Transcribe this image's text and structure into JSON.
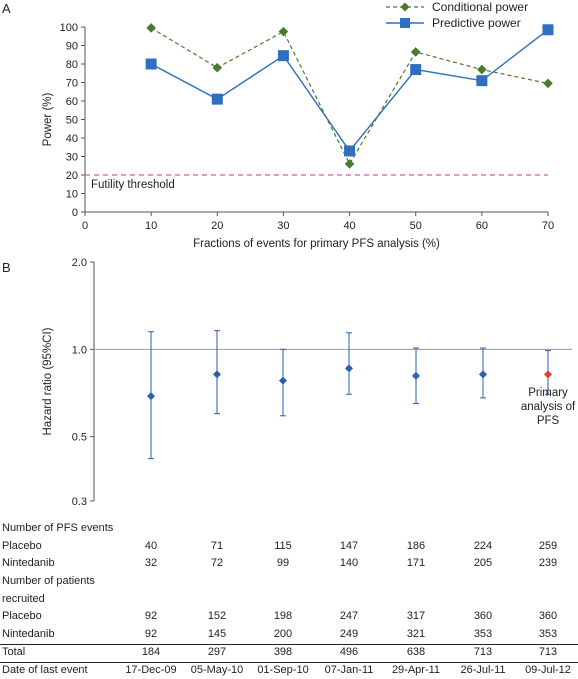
{
  "panels": {
    "a_label": "A",
    "b_label": "B"
  },
  "colors": {
    "conditional": "#4a7a2c",
    "predictive": "#2f6fc0",
    "threshold": "#e0559e",
    "reference": "#9a9a9a",
    "forest": "#2a5fae",
    "primary": "#e0402a"
  },
  "chart_data": [
    {
      "type": "line",
      "x": [
        10,
        20,
        30,
        40,
        50,
        60,
        70
      ],
      "series": [
        {
          "name": "Conditional power",
          "values": [
            99.5,
            78,
            97.5,
            26,
            86.5,
            77,
            69.5
          ]
        },
        {
          "name": "Predictive power",
          "values": [
            80,
            61,
            84.5,
            33,
            77,
            71,
            98.5
          ]
        }
      ],
      "xlabel": "Fractions of events for primary PFS analysis (%)",
      "ylabel": "Power (%)",
      "xlim": [
        0,
        70
      ],
      "ylim": [
        0,
        100
      ],
      "xticks": [
        "0",
        "10",
        "20",
        "30",
        "40",
        "50",
        "60",
        "70"
      ],
      "yticks": [
        "0",
        "10",
        "20",
        "30",
        "40",
        "50",
        "60",
        "70",
        "80",
        "90",
        "100"
      ],
      "threshold": {
        "value": 20,
        "label": "Futility threshold"
      },
      "legend": "top-right"
    },
    {
      "type": "scatter",
      "categories": [
        "17-Dec-09",
        "05-May-10",
        "01-Sep-10",
        "07-Jan-11",
        "29-Apr-11",
        "26-Jul-11",
        "09-Jul-12"
      ],
      "hr": [
        0.69,
        0.82,
        0.78,
        0.86,
        0.81,
        0.82,
        0.82
      ],
      "ci_lower": [
        0.42,
        0.6,
        0.59,
        0.7,
        0.65,
        0.68,
        0.7
      ],
      "ci_upper": [
        1.15,
        1.16,
        1.0,
        1.14,
        1.01,
        1.01,
        0.99
      ],
      "ylabel": "Hazard ratio (95%CI)",
      "yscale": "log",
      "ylim": [
        0.3,
        2.0
      ],
      "yticks": [
        "0.3",
        "0.5",
        "1.0",
        "2.0"
      ],
      "reference": 1.0,
      "primary_index": 6,
      "annotation": [
        "Primary",
        "analysis of",
        "PFS"
      ]
    }
  ],
  "table": {
    "rows": [
      {
        "label": "Number of PFS events",
        "values": []
      },
      {
        "label": "Placebo",
        "values": [
          "40",
          "71",
          "115",
          "147",
          "186",
          "224",
          "259"
        ]
      },
      {
        "label": "Nintedanib",
        "values": [
          "32",
          "72",
          "99",
          "140",
          "171",
          "205",
          "239"
        ]
      },
      {
        "label": "Number of patients",
        "values": []
      },
      {
        "label": "recruited",
        "values": []
      },
      {
        "label": "Placebo",
        "values": [
          "92",
          "152",
          "198",
          "247",
          "317",
          "360",
          "360"
        ]
      },
      {
        "label": "Nintedanib",
        "values": [
          "92",
          "145",
          "200",
          "249",
          "321",
          "353",
          "353"
        ]
      },
      {
        "label": "Total",
        "values": [
          "184",
          "297",
          "398",
          "496",
          "638",
          "713",
          "713"
        ]
      },
      {
        "label": "Date of last event",
        "values": [
          "17-Dec-09",
          "05-May-10",
          "01-Sep-10",
          "07-Jan-11",
          "29-Apr-11",
          "26-Jul-11",
          "09-Jul-12"
        ]
      }
    ]
  }
}
